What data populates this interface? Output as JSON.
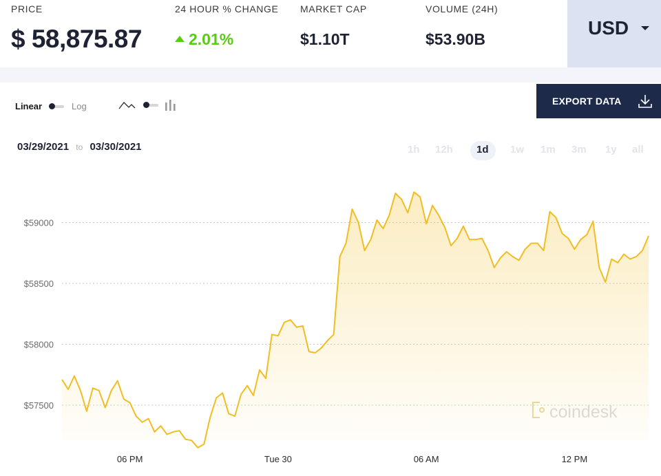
{
  "stats": {
    "price": {
      "label": "PRICE",
      "value": "$ 58,875.87"
    },
    "change": {
      "label": "24 HOUR % CHANGE",
      "value": "2.01%"
    },
    "market_cap": {
      "label": "MARKET CAP",
      "value": "$1.10T"
    },
    "volume": {
      "label": "VOLUME (24H)",
      "value": "$53.90B"
    }
  },
  "currency": {
    "label": "USD"
  },
  "toolbar": {
    "scale_linear": "Linear",
    "scale_log": "Log",
    "export_label": "EXPORT DATA"
  },
  "date_range": {
    "from": "03/29/2021",
    "to_word": "to",
    "to": "03/30/2021"
  },
  "ranges": [
    "1h",
    "12h",
    "1d",
    "1w",
    "1m",
    "3m",
    "1y",
    "all"
  ],
  "active_range": "1d",
  "colors": {
    "line": "#f2bd23",
    "positive": "#58cc15",
    "export_bg": "#1d2a4a",
    "currency_bg": "#dce2f2"
  },
  "watermark": "coindesk",
  "chart_data": {
    "type": "area",
    "title": "",
    "xlabel": "",
    "ylabel": "",
    "ylim": [
      57200,
      59500
    ],
    "y_ticks": [
      {
        "value": 59000,
        "label": "$59000"
      },
      {
        "value": 58500,
        "label": "$58500"
      },
      {
        "value": 58000,
        "label": "$58000"
      },
      {
        "value": 57500,
        "label": "$57500"
      }
    ],
    "x_ticks": [
      {
        "label": "06 PM",
        "index": 11
      },
      {
        "label": "Tue 30",
        "index": 35
      },
      {
        "label": "06 AM",
        "index": 59
      },
      {
        "label": "12 PM",
        "index": 83
      }
    ],
    "grid": true,
    "series": [
      {
        "values": [
          57710,
          57630,
          57740,
          57620,
          57450,
          57640,
          57620,
          57480,
          57620,
          57700,
          57550,
          57520,
          57410,
          57360,
          57390,
          57280,
          57330,
          57260,
          57280,
          57290,
          57220,
          57210,
          57150,
          57180,
          57400,
          57560,
          57600,
          57430,
          57410,
          57590,
          57660,
          57580,
          57790,
          57720,
          58080,
          58070,
          58180,
          58200,
          58140,
          58150,
          57940,
          57930,
          57970,
          58030,
          58080,
          58720,
          58830,
          59110,
          59000,
          58770,
          58860,
          59020,
          58950,
          59060,
          59240,
          59190,
          59080,
          59250,
          59210,
          58990,
          59140,
          59060,
          58960,
          58810,
          58870,
          58970,
          58860,
          58860,
          58870,
          58770,
          58630,
          58710,
          58760,
          58720,
          58690,
          58780,
          58830,
          58830,
          58770,
          59090,
          59040,
          58910,
          58870,
          58780,
          58860,
          58900,
          59010,
          58630,
          58510,
          58700,
          58670,
          58740,
          58700,
          58720,
          58770,
          58890
        ]
      }
    ]
  }
}
